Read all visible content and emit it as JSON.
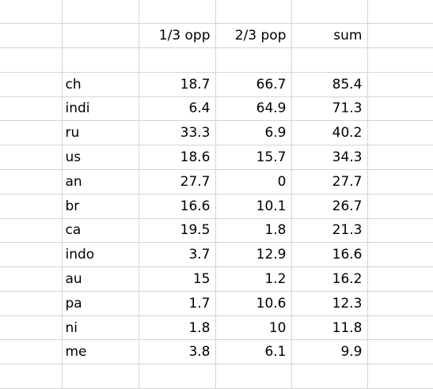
{
  "headers": {
    "opp": "1/3 opp",
    "pop": "2/3 pop",
    "sum": "sum"
  },
  "rows": [
    {
      "name": "ch",
      "opp": "18.7",
      "pop": "66.7",
      "sum": "85.4"
    },
    {
      "name": "indi",
      "opp": "6.4",
      "pop": "64.9",
      "sum": "71.3"
    },
    {
      "name": "ru",
      "opp": "33.3",
      "pop": "6.9",
      "sum": "40.2"
    },
    {
      "name": "us",
      "opp": "18.6",
      "pop": "15.7",
      "sum": "34.3"
    },
    {
      "name": "an",
      "opp": "27.7",
      "pop": "0",
      "sum": "27.7"
    },
    {
      "name": "br",
      "opp": "16.6",
      "pop": "10.1",
      "sum": "26.7"
    },
    {
      "name": "ca",
      "opp": "19.5",
      "pop": "1.8",
      "sum": "21.3"
    },
    {
      "name": "indo",
      "opp": "3.7",
      "pop": "12.9",
      "sum": "16.6"
    },
    {
      "name": "au",
      "opp": "15",
      "pop": "1.2",
      "sum": "16.2"
    },
    {
      "name": "pa",
      "opp": "1.7",
      "pop": "10.6",
      "sum": "12.3"
    },
    {
      "name": "ni",
      "opp": "1.8",
      "pop": "10",
      "sum": "11.8"
    },
    {
      "name": "me",
      "opp": "3.8",
      "pop": "6.1",
      "sum": "9.9"
    }
  ]
}
